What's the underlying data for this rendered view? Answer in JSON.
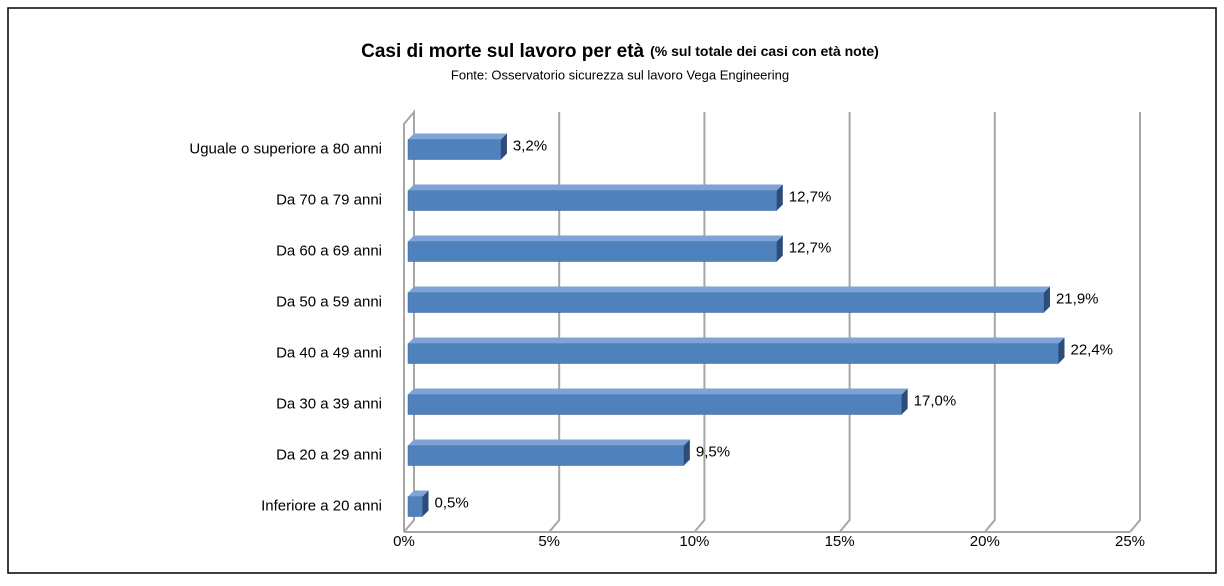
{
  "chart_data": {
    "type": "bar",
    "orientation": "horizontal",
    "title": "Casi di morte sul lavoro per età",
    "title_note": "(% sul totale dei casi con età note)",
    "subtitle": "Fonte: Osservatorio sicurezza sul lavoro Vega Engineering",
    "categories": [
      "Uguale o superiore a 80 anni",
      "Da 70 a 79 anni",
      "Da 60 a 69 anni",
      "Da 50 a 59 anni",
      "Da 40 a 49 anni",
      "Da 30 a 39 anni",
      "Da 20 a 29 anni",
      "Inferiore a 20 anni"
    ],
    "values": [
      3.2,
      12.7,
      12.7,
      21.9,
      22.4,
      17.0,
      9.5,
      0.5
    ],
    "value_labels": [
      "3,2%",
      "12,7%",
      "12,7%",
      "21,9%",
      "22,4%",
      "17,0%",
      "9,5%",
      "0,5%"
    ],
    "color": "#4f81bd",
    "xlim": [
      0,
      25
    ],
    "xticks": [
      {
        "value": 0,
        "label": "0%"
      },
      {
        "value": 5,
        "label": "5%"
      },
      {
        "value": 10,
        "label": "10%"
      },
      {
        "value": 15,
        "label": "15%"
      },
      {
        "value": 20,
        "label": "20%"
      },
      {
        "value": 25,
        "label": "25%"
      }
    ],
    "grid": true
  }
}
